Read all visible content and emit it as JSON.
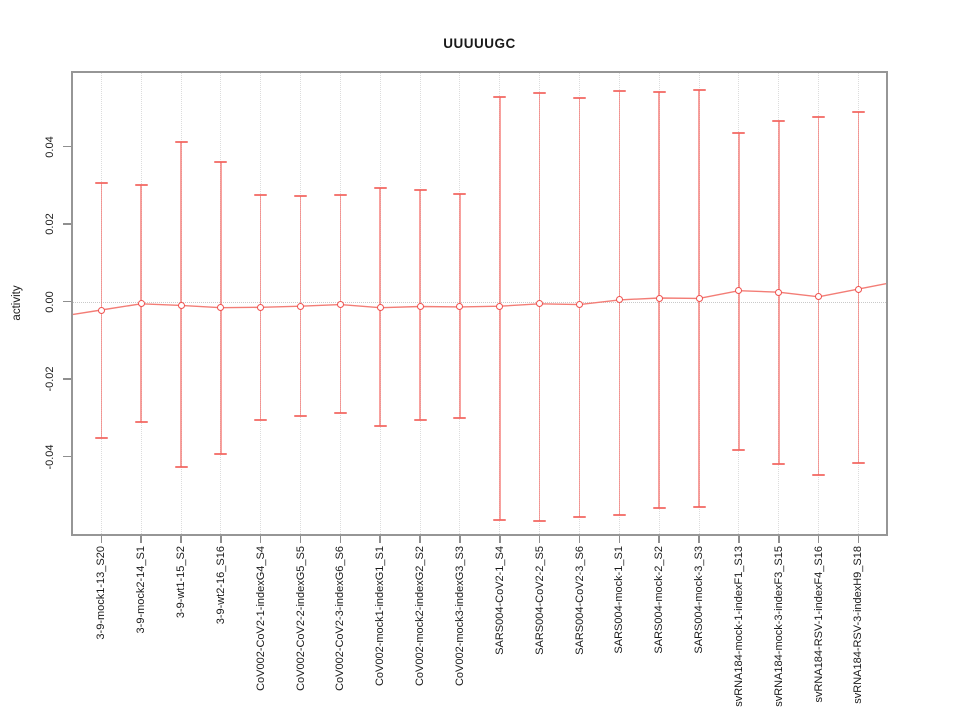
{
  "chart_data": {
    "type": "errorbar",
    "title": "UUUUUGC",
    "xlabel": "",
    "ylabel": "activity",
    "y_ticks": [
      -0.04,
      -0.02,
      0.0,
      0.02,
      0.04
    ],
    "y_tick_labels": [
      "-0.04",
      "-0.02",
      "0.00",
      "0.02",
      "0.04"
    ],
    "ylim": [
      -0.0615,
      0.0598
    ],
    "grid": "vertical-dotted",
    "zero_reference_line": true,
    "legend": "none",
    "categories": [
      "3-9-mock1-13_S20",
      "3-9-mock2-14_S1",
      "3-9-wt1-15_S2",
      "3-9-wt2-16_S16",
      "CoV002-CoV2-1-indexG4_S4",
      "CoV002-CoV2-2-indexG5_S5",
      "CoV002-CoV2-3-indexG6_S6",
      "CoV002-mock1-indexG1_S1",
      "CoV002-mock2-indexG2_S2",
      "CoV002-mock3-indexG3_S3",
      "SARS004-CoV2-1_S4",
      "SARS004-CoV2-2_S5",
      "SARS004-CoV2-3_S6",
      "SARS004-mock-1_S1",
      "SARS004-mock-2_S2",
      "SARS004-mock-3_S3",
      "svRNA184-mock-1-indexF1_S13",
      "svRNA184-mock-3-indexF3_S15",
      "svRNA184-RSV-1-indexF4_S16",
      "svRNA184-RSV-3-indexH9_S18"
    ],
    "series": [
      {
        "name": "activity mean with error bars",
        "center": [
          -0.0022,
          -0.0006,
          -0.001,
          -0.0016,
          -0.0015,
          -0.0012,
          -0.0008,
          -0.0016,
          -0.0013,
          -0.0014,
          -0.0012,
          -0.0006,
          -0.0008,
          0.0004,
          0.0009,
          0.0008,
          0.0028,
          0.0024,
          0.0012,
          0.0032
        ],
        "upper": [
          0.0306,
          0.0301,
          0.0412,
          0.0361,
          0.0276,
          0.0273,
          0.0274,
          0.0294,
          0.0287,
          0.0278,
          0.0528,
          0.0537,
          0.0524,
          0.0543,
          0.054,
          0.0546,
          0.0434,
          0.0466,
          0.0475,
          0.049
        ],
        "lower": [
          -0.0352,
          -0.0311,
          -0.0427,
          -0.0394,
          -0.0305,
          -0.0295,
          -0.0288,
          -0.0322,
          -0.0306,
          -0.0301,
          -0.0563,
          -0.0566,
          -0.0556,
          -0.0552,
          -0.0532,
          -0.053,
          -0.0382,
          -0.0419,
          -0.0447,
          -0.0418
        ]
      }
    ],
    "colors": {
      "error_bar": "rgba(243,104,99,0.62)",
      "error_cap": "rgba(242,98,92,0.85)",
      "marker_stroke": "#ef5350",
      "marker_fill": "#ffffff",
      "connector_line": "#f37d76",
      "grid_line": "#dcdcdc",
      "zero_line": "#c9c9c9",
      "box": "#969696",
      "text": "#1a1a1a"
    }
  }
}
